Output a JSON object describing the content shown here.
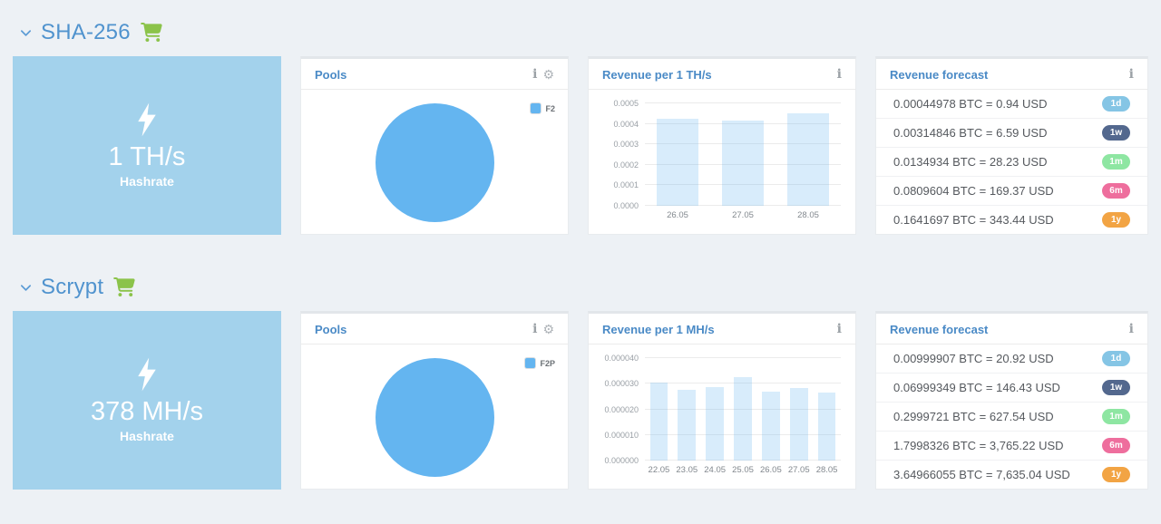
{
  "colors": {
    "background": "#edf1f5",
    "section_title_blue": "#5093ce",
    "panel_title_blue": "#4a8ac6",
    "cart_green": "#8bc34a",
    "hashrate_card_bg": "#a3d2ec",
    "pie_blue": "#64b5f0",
    "badge_1d": "#85c5e5",
    "badge_1w": "#53688e",
    "badge_1m": "#8ee6a2",
    "badge_6m": "#ee6e9d",
    "badge_1y": "#f2a444"
  },
  "sections": [
    {
      "title": "SHA-256",
      "hashrate": {
        "value": "1 TH/s",
        "label": "Hashrate"
      },
      "forecast": {
        "title": "Revenue forecast",
        "rows": [
          {
            "text": "0.00044978 BTC = 0.94 USD",
            "badge": "1d",
            "badge_color": "#85c5e5"
          },
          {
            "text": "0.00314846 BTC = 6.59 USD",
            "badge": "1w",
            "badge_color": "#53688e"
          },
          {
            "text": "0.0134934 BTC = 28.23 USD",
            "badge": "1m",
            "badge_color": "#8ee6a2"
          },
          {
            "text": "0.0809604 BTC = 169.37 USD",
            "badge": "6m",
            "badge_color": "#ee6e9d"
          },
          {
            "text": "0.1641697 BTC = 343.44 USD",
            "badge": "1y",
            "badge_color": "#f2a444"
          }
        ]
      }
    },
    {
      "title": "Scrypt",
      "hashrate": {
        "value": "378 MH/s",
        "label": "Hashrate"
      },
      "forecast": {
        "title": "Revenue forecast",
        "rows": [
          {
            "text": "0.00999907 BTC = 20.92 USD",
            "badge": "1d",
            "badge_color": "#85c5e5"
          },
          {
            "text": "0.06999349 BTC = 146.43 USD",
            "badge": "1w",
            "badge_color": "#53688e"
          },
          {
            "text": "0.2999721 BTC = 627.54 USD",
            "badge": "1m",
            "badge_color": "#8ee6a2"
          },
          {
            "text": "1.7998326 BTC = 3,765.22 USD",
            "badge": "6m",
            "badge_color": "#ee6e9d"
          },
          {
            "text": "3.64966055 BTC = 7,635.04 USD",
            "badge": "1y",
            "badge_color": "#f2a444"
          }
        ]
      }
    }
  ],
  "chart_data": [
    {
      "type": "bar",
      "title": "Revenue per 1 TH/s",
      "categories": [
        "26.05",
        "27.05",
        "28.05"
      ],
      "values": [
        0.000425,
        0.000415,
        0.00045
      ],
      "xlabel": "",
      "ylabel": "",
      "ylim": [
        0,
        0.0005
      ],
      "yticks": [
        "0.0000",
        "0.0001",
        "0.0002",
        "0.0003",
        "0.0004",
        "0.0005"
      ],
      "grid": true,
      "legend_position": "none",
      "bar_fill": "rgba(100,181,240,0.25)"
    },
    {
      "type": "bar",
      "title": "Revenue per 1 MH/s",
      "categories": [
        "22.05",
        "23.05",
        "24.05",
        "25.05",
        "26.05",
        "27.05",
        "28.05"
      ],
      "values": [
        3.05e-05,
        2.77e-05,
        2.88e-05,
        3.25e-05,
        2.7e-05,
        2.83e-05,
        2.65e-05
      ],
      "xlabel": "",
      "ylabel": "",
      "ylim": [
        0,
        4e-05
      ],
      "yticks": [
        "0.000000",
        "0.000010",
        "0.000020",
        "0.000030",
        "0.000040"
      ],
      "grid": true,
      "legend_position": "none",
      "bar_fill": "rgba(100,181,240,0.25)"
    },
    {
      "type": "pie",
      "title": "Pools",
      "series": [
        {
          "name": "F2",
          "value": 100
        }
      ],
      "color": "#64b5f0",
      "legend_position": "top-right"
    },
    {
      "type": "pie",
      "title": "Pools",
      "series": [
        {
          "name": "F2P",
          "value": 100
        }
      ],
      "color": "#64b5f0",
      "legend_position": "top-right"
    }
  ]
}
